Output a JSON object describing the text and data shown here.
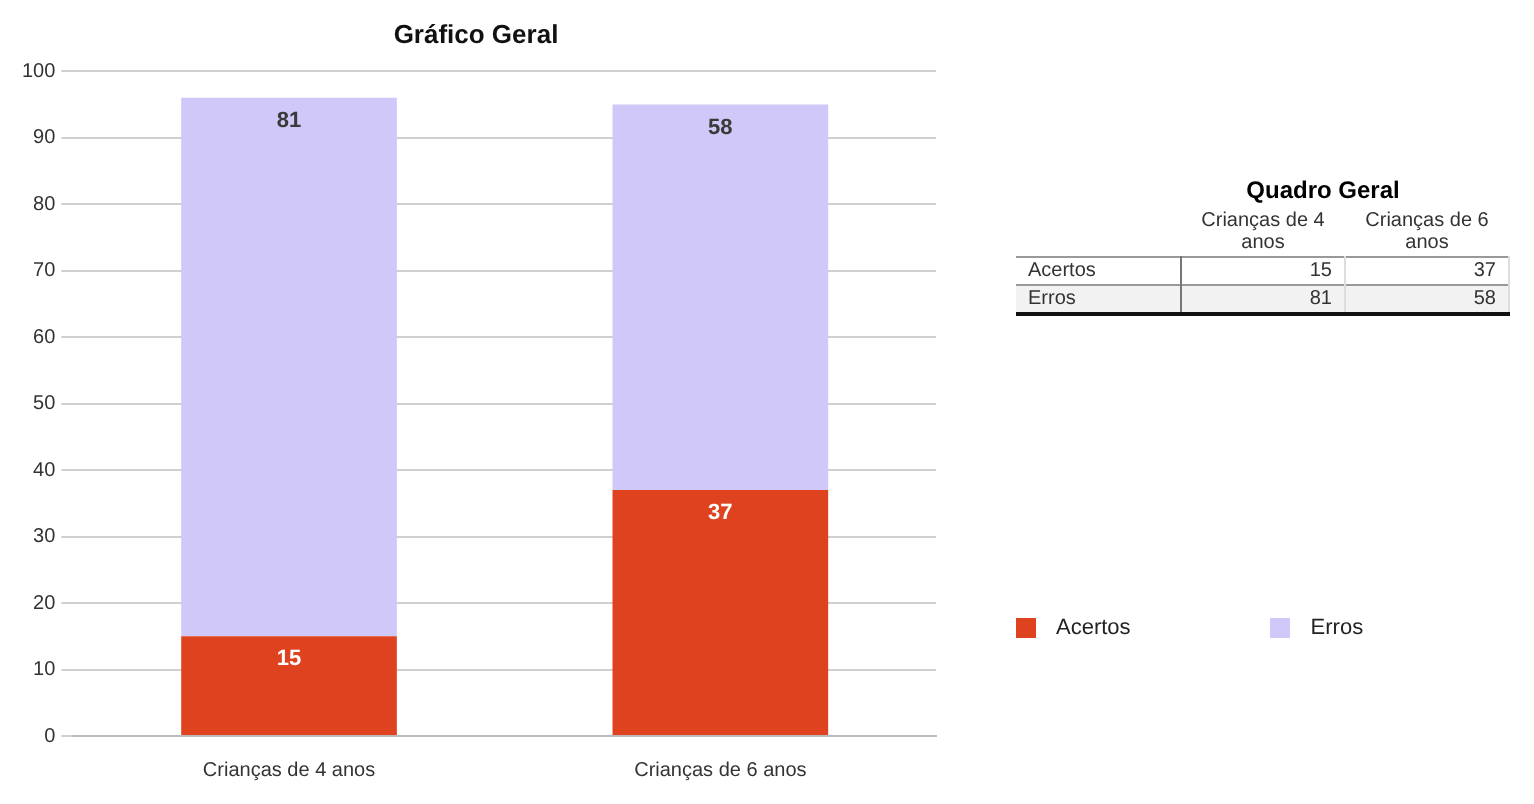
{
  "chart_data": [
    {
      "type": "bar",
      "title": "Gráfico Geral",
      "categories": [
        "Crianças de 4 anos",
        "Crianças de 6 anos"
      ],
      "series": [
        {
          "name": "Acertos",
          "color": "#df421e",
          "values": [
            15,
            37
          ]
        },
        {
          "name": "Erros",
          "color": "#d0c8f8",
          "values": [
            81,
            58
          ]
        }
      ],
      "stacked": true,
      "ylim": [
        0,
        100
      ],
      "yticks": [
        0,
        10,
        20,
        30,
        40,
        50,
        60,
        70,
        80,
        90,
        100
      ],
      "grid": "y",
      "legend": "right",
      "data_labels": true
    },
    {
      "type": "other",
      "title": "Quadro Geral",
      "data_labels": true,
      "categories": [
        "Crianças de 4 anos",
        "Crianças de 6 anos"
      ],
      "series": [
        {
          "name": "Acertos",
          "values": [
            15,
            37
          ]
        },
        {
          "name": "Erros",
          "values": [
            81,
            58
          ]
        }
      ]
    }
  ]
}
